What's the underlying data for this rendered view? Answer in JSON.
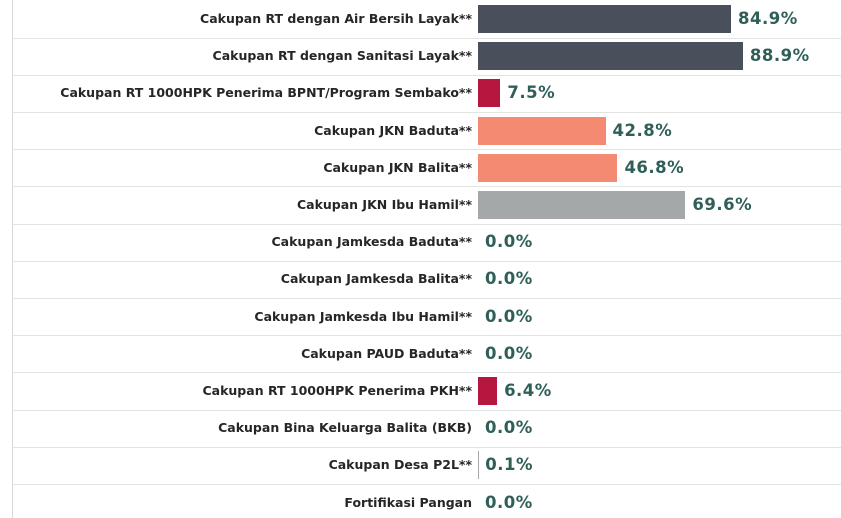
{
  "chart_data": {
    "type": "bar",
    "orientation": "horizontal",
    "categories": [
      "Cakupan RT dengan Air Bersih Layak**",
      "Cakupan RT dengan Sanitasi Layak**",
      "Cakupan RT 1000HPK Penerima BPNT/Program Sembako**",
      "Cakupan JKN Baduta**",
      "Cakupan JKN Balita**",
      "Cakupan JKN Ibu Hamil**",
      "Cakupan Jamkesda Baduta**",
      "Cakupan Jamkesda Balita**",
      "Cakupan Jamkesda Ibu Hamil**",
      "Cakupan PAUD Baduta**",
      "Cakupan RT 1000HPK Penerima PKH**",
      "Cakupan Bina Keluarga Balita (BKB)",
      "Cakupan Desa P2L**",
      "Fortifikasi Pangan"
    ],
    "values": [
      84.9,
      88.9,
      7.5,
      42.8,
      46.8,
      69.6,
      0.0,
      0.0,
      0.0,
      0.0,
      6.4,
      0.0,
      0.1,
      0.0
    ],
    "value_labels": [
      "84.9%",
      "88.9%",
      "7.5%",
      "42.8%",
      "46.8%",
      "69.6%",
      "0.0%",
      "0.0%",
      "0.0%",
      "0.0%",
      "6.4%",
      "0.0%",
      "0.1%",
      "0.0%"
    ],
    "colors": [
      "#4a4f5c",
      "#4a4f5c",
      "#b5173f",
      "#f48a72",
      "#f48a72",
      "#a4a8a8",
      "#a4a8a8",
      "#a4a8a8",
      "#a4a8a8",
      "#a4a8a8",
      "#b5173f",
      "#a4a8a8",
      "#a4a8a8",
      "#a4a8a8"
    ]
  }
}
